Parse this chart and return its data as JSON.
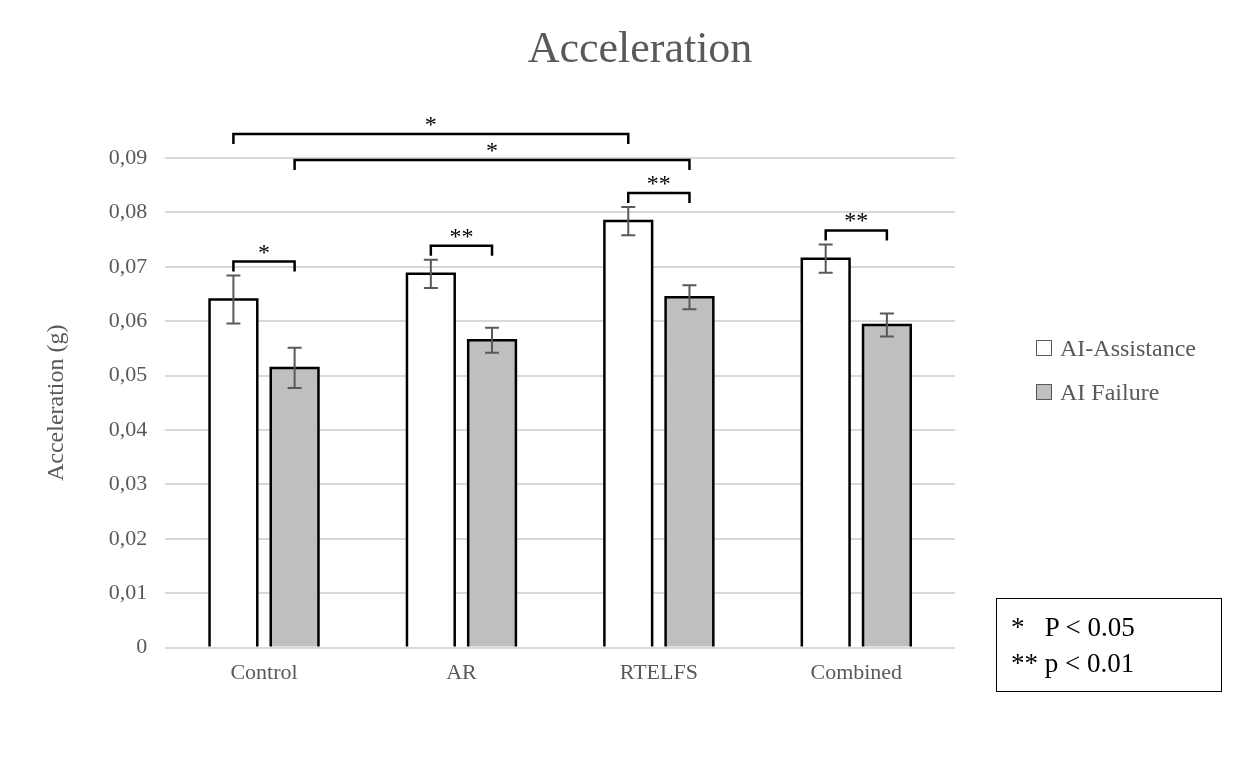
{
  "chart_data": {
    "type": "bar",
    "title": "Acceleration",
    "ylabel": "Acceleration (g)",
    "categories": [
      "Control",
      "AR",
      "RTELFS",
      "Combined"
    ],
    "series": [
      {
        "name": "AI-Assistance",
        "color": "#ffffff",
        "values": [
          0.064,
          0.0687,
          0.0784,
          0.0715
        ],
        "errors": [
          0.0044,
          0.0026,
          0.0026,
          0.0026
        ]
      },
      {
        "name": "AI Failure",
        "color": "#bfbfbf",
        "values": [
          0.0514,
          0.0565,
          0.0644,
          0.0593
        ],
        "errors": [
          0.0037,
          0.0023,
          0.0022,
          0.0021
        ]
      }
    ],
    "ylim": [
      0,
      0.09
    ],
    "yticks": [
      {
        "value": 0,
        "label": "0"
      },
      {
        "value": 0.01,
        "label": "0,01"
      },
      {
        "value": 0.02,
        "label": "0,02"
      },
      {
        "value": 0.03,
        "label": "0,03"
      },
      {
        "value": 0.04,
        "label": "0,04"
      },
      {
        "value": 0.05,
        "label": "0,05"
      },
      {
        "value": 0.06,
        "label": "0,06"
      },
      {
        "value": 0.07,
        "label": "0,07"
      },
      {
        "value": 0.08,
        "label": "0,08"
      },
      {
        "value": 0.09,
        "label": "0,09"
      }
    ],
    "grid": "y",
    "legend": "right",
    "annotations": [
      "*",
      "**",
      "**",
      "**",
      "*",
      "*",
      "*   P < 0.05",
      "** p < 0.01"
    ]
  }
}
